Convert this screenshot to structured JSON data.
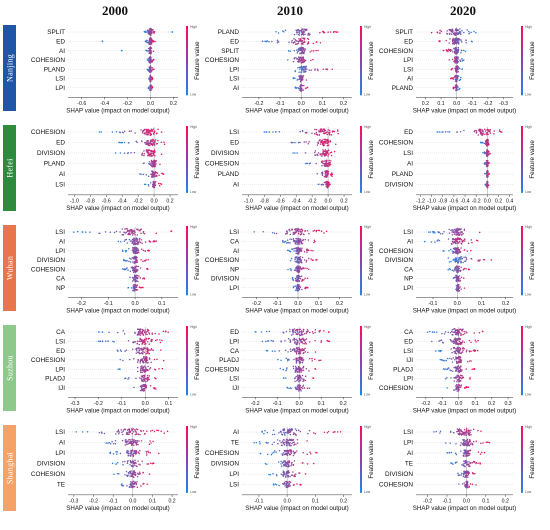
{
  "years": [
    "2000",
    "2010",
    "2020"
  ],
  "cities": [
    {
      "name": "Nanjing",
      "color": "#1f56a6"
    },
    {
      "name": "Hefei",
      "color": "#2e8b3e"
    },
    {
      "name": "Wuhan",
      "color": "#e8764d"
    },
    {
      "name": "Suzhou",
      "color": "#8cc98a"
    },
    {
      "name": "Shanghai",
      "color": "#f4a265"
    }
  ],
  "colors": {
    "low": "#1e88e5",
    "high": "#ff0d57"
  },
  "colorbar": {
    "label": "Feature value",
    "high": "High",
    "low": "Low"
  },
  "chart_data": [
    {
      "type": "scatter",
      "subtype": "shap-beeswarm",
      "city": "Nanjing",
      "year": "2000",
      "features": [
        "SPLIT",
        "ED",
        "AI",
        "COHESION",
        "PLAND",
        "LSI",
        "LPI"
      ],
      "xticks": [
        -0.6,
        -0.4,
        -0.2,
        0.0,
        0.2
      ],
      "xlim": [
        -0.72,
        0.24
      ],
      "spread": [
        [
          -0.06,
          0.05
        ],
        [
          -0.05,
          0.04
        ],
        [
          -0.04,
          0.03
        ],
        [
          -0.03,
          0.03
        ],
        [
          -0.03,
          0.03
        ],
        [
          -0.02,
          0.02
        ],
        [
          -0.02,
          0.02
        ]
      ],
      "outliers": [
        [
          0.19
        ],
        [
          -0.42
        ],
        [
          -0.25
        ],
        [],
        [],
        [],
        []
      ],
      "xlabel": "SHAP value (impact on model output)"
    },
    {
      "type": "scatter",
      "subtype": "shap-beeswarm",
      "city": "Nanjing",
      "year": "2010",
      "features": [
        "PLAND",
        "ED",
        "SPLIT",
        "COHESION",
        "LPI",
        "LSI",
        "AI"
      ],
      "xticks": [
        -0.2,
        -0.1,
        0.0,
        0.1,
        0.2
      ],
      "xlim": [
        -0.28,
        0.24
      ],
      "spread": [
        [
          -0.12,
          0.18
        ],
        [
          -0.2,
          0.12
        ],
        [
          -0.06,
          0.08
        ],
        [
          -0.08,
          0.06
        ],
        [
          -0.04,
          0.16
        ],
        [
          -0.04,
          0.04
        ],
        [
          -0.03,
          0.03
        ]
      ],
      "outliers": [
        [],
        [],
        [],
        [],
        [],
        [],
        []
      ],
      "xlabel": "SHAP value (impact on model output)"
    },
    {
      "type": "scatter",
      "subtype": "shap-beeswarm",
      "city": "Nanjing",
      "year": "2020",
      "features": [
        "SPLIT",
        "ED",
        "COHESION",
        "LPI",
        "LSI",
        "AI",
        "PLAND"
      ],
      "xticks": [
        0.2,
        0.1,
        0.0,
        -0.1,
        -0.2,
        -0.3
      ],
      "xlim": [
        0.26,
        -0.36
      ],
      "spread": [
        [
          -0.14,
          0.2
        ],
        [
          -0.1,
          0.12
        ],
        [
          -0.06,
          0.09
        ],
        [
          -0.05,
          0.05
        ],
        [
          -0.04,
          0.04
        ],
        [
          -0.03,
          0.04
        ],
        [
          -0.02,
          0.03
        ]
      ],
      "outliers": [
        [],
        [],
        [],
        [],
        [],
        [],
        []
      ],
      "xlabel": "SHAP value (impact on model output)"
    },
    {
      "type": "scatter",
      "subtype": "shap-beeswarm",
      "city": "Hefei",
      "year": "2000",
      "features": [
        "COHESION",
        "ED",
        "DIVISION",
        "PLAND",
        "AI",
        "LSI"
      ],
      "xticks": [
        -1.0,
        -0.8,
        -0.6,
        -0.4,
        -0.2,
        0.0,
        0.2
      ],
      "xlim": [
        -1.08,
        0.3
      ],
      "spread": [
        [
          -0.7,
          0.12
        ],
        [
          -0.45,
          0.15
        ],
        [
          -0.5,
          0.1
        ],
        [
          -0.2,
          0.12
        ],
        [
          -0.18,
          0.12
        ],
        [
          -0.12,
          0.1
        ]
      ],
      "outliers": [
        [],
        [],
        [],
        [],
        [],
        []
      ],
      "xlabel": "SHAP value (impact on model output)"
    },
    {
      "type": "scatter",
      "subtype": "shap-beeswarm",
      "city": "Hefei",
      "year": "2010",
      "features": [
        "LSI",
        "ED",
        "DIVISION",
        "COHESION",
        "PLAND",
        "AI"
      ],
      "xticks": [
        -1.0,
        -0.8,
        -0.6,
        -0.4,
        -0.2,
        0.0,
        0.2
      ],
      "xlim": [
        -1.08,
        0.3
      ],
      "spread": [
        [
          -0.8,
          0.18
        ],
        [
          -0.55,
          0.1
        ],
        [
          -0.45,
          0.1
        ],
        [
          -0.3,
          0.1
        ],
        [
          -0.2,
          0.08
        ],
        [
          -0.15,
          0.06
        ]
      ],
      "outliers": [
        [],
        [],
        [],
        [],
        [],
        []
      ],
      "xlabel": "SHAP value (impact on model output)"
    },
    {
      "type": "scatter",
      "subtype": "shap-beeswarm",
      "city": "Hefei",
      "year": "2020",
      "features": [
        "ED",
        "COHESION",
        "LSI",
        "AI",
        "PLAND",
        "DIVISION"
      ],
      "xticks": [
        -1.2,
        -1.0,
        -0.8,
        -0.6,
        -0.4,
        -0.2,
        0.0,
        0.2,
        0.4
      ],
      "xlim": [
        -1.28,
        0.46
      ],
      "spread": [
        [
          -0.9,
          0.3
        ],
        [
          -0.12,
          0.06
        ],
        [
          -0.08,
          0.05
        ],
        [
          -0.06,
          0.04
        ],
        [
          -0.05,
          0.04
        ],
        [
          -0.04,
          0.03
        ]
      ],
      "outliers": [
        [],
        [],
        [],
        [],
        [],
        []
      ],
      "xlabel": "SHAP value (impact on model output)"
    },
    {
      "type": "scatter",
      "subtype": "shap-beeswarm",
      "city": "Wuhan",
      "year": "2000",
      "features": [
        "LSI",
        "AI",
        "LPI",
        "DIVISION",
        "COHESION",
        "CA",
        "NP"
      ],
      "xticks": [
        -0.2,
        -0.1,
        0.0,
        0.1
      ],
      "xlim": [
        -0.25,
        0.16
      ],
      "spread": [
        [
          -0.24,
          0.14
        ],
        [
          -0.07,
          0.08
        ],
        [
          -0.05,
          0.06
        ],
        [
          -0.05,
          0.05
        ],
        [
          -0.05,
          0.05
        ],
        [
          -0.03,
          0.04
        ],
        [
          -0.03,
          0.03
        ]
      ],
      "outliers": [
        [],
        [],
        [],
        [],
        [],
        [],
        []
      ],
      "xlabel": "SHAP value (impact on model output)"
    },
    {
      "type": "scatter",
      "subtype": "shap-beeswarm",
      "city": "Wuhan",
      "year": "2010",
      "features": [
        "LSI",
        "CA",
        "AI",
        "COHESION",
        "NP",
        "DIVISION",
        "LPI"
      ],
      "xticks": [
        -0.2,
        -0.1,
        0.0,
        0.1,
        0.2
      ],
      "xlim": [
        -0.27,
        0.26
      ],
      "spread": [
        [
          -0.22,
          0.14
        ],
        [
          -0.1,
          0.12
        ],
        [
          -0.06,
          0.08
        ],
        [
          -0.06,
          0.1
        ],
        [
          -0.05,
          0.06
        ],
        [
          -0.04,
          0.05
        ],
        [
          -0.03,
          0.05
        ]
      ],
      "outliers": [
        [],
        [],
        [],
        [],
        [],
        [],
        []
      ],
      "xlabel": "SHAP value (impact on model output)"
    },
    {
      "type": "scatter",
      "subtype": "shap-beeswarm",
      "city": "Wuhan",
      "year": "2020",
      "features": [
        "LSI",
        "AI",
        "COHESION",
        "DIVISION",
        "CA",
        "NP",
        "LPI"
      ],
      "xticks": [
        -0.1,
        0.0,
        0.1,
        0.2
      ],
      "xlim": [
        -0.17,
        0.23
      ],
      "spread": [
        [
          -0.12,
          0.12
        ],
        [
          -0.14,
          0.1
        ],
        [
          -0.06,
          0.06
        ],
        [
          -0.04,
          0.16
        ],
        [
          -0.04,
          0.05
        ],
        [
          -0.03,
          0.04
        ],
        [
          -0.03,
          0.04
        ]
      ],
      "outliers": [
        [],
        [],
        [],
        [],
        [],
        [],
        []
      ],
      "xlabel": "SHAP value (impact on model output)"
    },
    {
      "type": "scatter",
      "subtype": "shap-beeswarm",
      "city": "Suzhou",
      "year": "2000",
      "features": [
        "CA",
        "LSI",
        "ED",
        "COHESION",
        "LPI",
        "PLADJ",
        "IJI"
      ],
      "xticks": [
        -0.3,
        -0.2,
        -0.1,
        0.0,
        0.1
      ],
      "xlim": [
        -0.33,
        0.14
      ],
      "spread": [
        [
          -0.2,
          0.1
        ],
        [
          -0.2,
          0.08
        ],
        [
          -0.15,
          0.08
        ],
        [
          -0.13,
          0.08
        ],
        [
          -0.12,
          0.08
        ],
        [
          -0.1,
          0.06
        ],
        [
          -0.08,
          0.06
        ]
      ],
      "outliers": [
        [],
        [],
        [],
        [],
        [],
        [],
        []
      ],
      "xlabel": "SHAP value (impact on model output)"
    },
    {
      "type": "scatter",
      "subtype": "shap-beeswarm",
      "city": "Suzhou",
      "year": "2010",
      "features": [
        "ED",
        "LPI",
        "CA",
        "PLADJ",
        "COHESION",
        "LSI",
        "IJI"
      ],
      "xticks": [
        -0.2,
        -0.1,
        0.0,
        0.1,
        0.2
      ],
      "xlim": [
        -0.26,
        0.24
      ],
      "spread": [
        [
          -0.2,
          0.2
        ],
        [
          -0.18,
          0.15
        ],
        [
          -0.15,
          0.12
        ],
        [
          -0.1,
          0.1
        ],
        [
          -0.1,
          0.1
        ],
        [
          -0.08,
          0.08
        ],
        [
          -0.06,
          0.06
        ]
      ],
      "outliers": [
        [],
        [],
        [],
        [],
        [],
        [],
        []
      ],
      "xlabel": "SHAP value (impact on model output)"
    },
    {
      "type": "scatter",
      "subtype": "shap-beeswarm",
      "city": "Suzhou",
      "year": "2020",
      "features": [
        "CA",
        "ED",
        "LSI",
        "IJI",
        "PLADJ",
        "LPI",
        "COHESION"
      ],
      "xticks": [
        -0.2,
        -0.1,
        0.0,
        0.1,
        0.2,
        0.3
      ],
      "xlim": [
        -0.26,
        0.33
      ],
      "spread": [
        [
          -0.2,
          0.15
        ],
        [
          -0.18,
          0.12
        ],
        [
          -0.15,
          0.12
        ],
        [
          -0.12,
          0.1
        ],
        [
          -0.1,
          0.1
        ],
        [
          -0.1,
          0.08
        ],
        [
          -0.08,
          0.06
        ]
      ],
      "outliers": [
        [],
        [],
        [],
        [],
        [],
        [],
        []
      ],
      "xlabel": "SHAP value (impact on model output)"
    },
    {
      "type": "scatter",
      "subtype": "shap-beeswarm",
      "city": "Shanghai",
      "year": "2000",
      "features": [
        "LSI",
        "AI",
        "LPI",
        "DIVISION",
        "COHESION",
        "TE"
      ],
      "xticks": [
        -0.3,
        -0.2,
        -0.1,
        0.0,
        0.1,
        0.2
      ],
      "xlim": [
        -0.33,
        0.23
      ],
      "spread": [
        [
          -0.3,
          0.18
        ],
        [
          -0.18,
          0.15
        ],
        [
          -0.15,
          0.15
        ],
        [
          -0.12,
          0.12
        ],
        [
          -0.1,
          0.1
        ],
        [
          -0.08,
          0.08
        ]
      ],
      "outliers": [
        [],
        [],
        [],
        [],
        [],
        []
      ],
      "xlabel": "SHAP value (impact on model output)"
    },
    {
      "type": "scatter",
      "subtype": "shap-beeswarm",
      "city": "Shanghai",
      "year": "2010",
      "features": [
        "AI",
        "TE",
        "COHESION",
        "DIVISION",
        "LPI",
        "LSI"
      ],
      "xticks": [
        -0.1,
        0.0,
        0.1,
        0.2
      ],
      "xlim": [
        -0.16,
        0.23
      ],
      "spread": [
        [
          -0.12,
          0.2
        ],
        [
          -0.12,
          0.15
        ],
        [
          -0.1,
          0.12
        ],
        [
          -0.08,
          0.1
        ],
        [
          -0.07,
          0.08
        ],
        [
          -0.05,
          0.05
        ]
      ],
      "outliers": [
        [],
        [],
        [],
        [],
        [],
        []
      ],
      "xlabel": "SHAP value (impact on model output)"
    },
    {
      "type": "scatter",
      "subtype": "shap-beeswarm",
      "city": "Shanghai",
      "year": "2020",
      "features": [
        "LSI",
        "LPI",
        "AI",
        "TE",
        "DIVISION",
        "COHESION"
      ],
      "xticks": [
        -0.2,
        -0.1,
        0.0,
        0.1,
        0.2
      ],
      "xlim": [
        -0.26,
        0.24
      ],
      "spread": [
        [
          -0.25,
          0.15
        ],
        [
          -0.12,
          0.12
        ],
        [
          -0.1,
          0.1
        ],
        [
          -0.08,
          0.08
        ],
        [
          -0.06,
          0.06
        ],
        [
          -0.05,
          0.05
        ]
      ],
      "outliers": [
        [],
        [],
        [],
        [],
        [],
        []
      ],
      "xlabel": "SHAP value (impact on model output)"
    }
  ]
}
